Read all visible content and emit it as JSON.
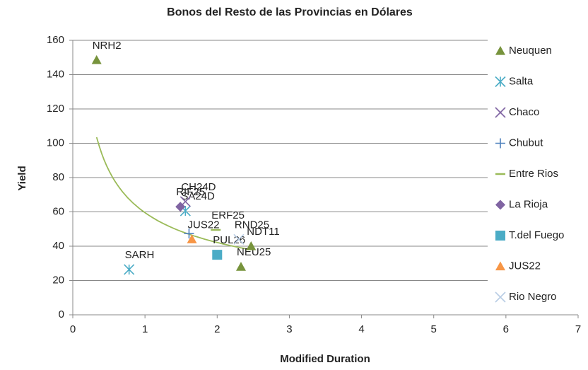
{
  "chart_data": {
    "type": "scatter",
    "title": "Bonos del Resto de las Provincias en Dólares",
    "x_label": "Modified Duration",
    "y_label": "Yield",
    "xlim": [
      0,
      7
    ],
    "xticks": [
      0,
      1,
      2,
      3,
      4,
      5,
      6,
      7
    ],
    "ylim": [
      0,
      160
    ],
    "yticks": [
      0,
      20,
      40,
      60,
      80,
      100,
      120,
      140,
      160
    ],
    "grid": true,
    "legend": "right",
    "trendline": {
      "type": "power",
      "color": "#9bbb59"
    },
    "series": [
      {
        "name": "Neuquen",
        "color": "#77933c",
        "marker": "triangle",
        "x": [
          0.33,
          2.33,
          2.47
        ],
        "values": [
          148.5,
          28,
          40
        ],
        "labels": [
          "NRH2",
          "NEU25",
          "NDT11"
        ]
      },
      {
        "name": "Salta",
        "color": "#4bacc6",
        "marker": "asterisk",
        "x": [
          0.78,
          1.56
        ],
        "values": [
          26.4,
          60.6
        ],
        "labels": [
          "SARH",
          "SA24D"
        ]
      },
      {
        "name": "Chaco",
        "color": "#8064a2",
        "marker": "x",
        "x": [
          1.56
        ],
        "values": [
          66
        ],
        "labels": [
          "CH24D"
        ]
      },
      {
        "name": "Chubut",
        "color": "#4f81bd",
        "marker": "plus",
        "x": [
          1.61
        ],
        "values": [
          47.4
        ],
        "labels": [
          null
        ]
      },
      {
        "name": "Entre Rios",
        "color": "#9bbb59",
        "marker": "dash",
        "x": [
          1.98
        ],
        "values": [
          49.5
        ],
        "labels": [
          "ERF25"
        ]
      },
      {
        "name": "La Rioja",
        "color": "#8064a2",
        "marker": "diamond",
        "x": [
          1.49
        ],
        "values": [
          63
        ],
        "labels": [
          "RIF25"
        ]
      },
      {
        "name": "T.del Fuego",
        "color": "#4bacc6",
        "marker": "square",
        "x": [
          2.0
        ],
        "values": [
          35
        ],
        "labels": [
          "PUL26"
        ]
      },
      {
        "name": "JUS22",
        "color": "#f79646",
        "marker": "triangle",
        "x": [
          1.65
        ],
        "values": [
          44
        ],
        "labels": [
          "JUS22"
        ]
      },
      {
        "name": "Rio Negro",
        "color": "#b9cde5",
        "marker": "x",
        "x": [
          2.3
        ],
        "values": [
          44
        ],
        "labels": [
          "RND25"
        ]
      }
    ]
  }
}
